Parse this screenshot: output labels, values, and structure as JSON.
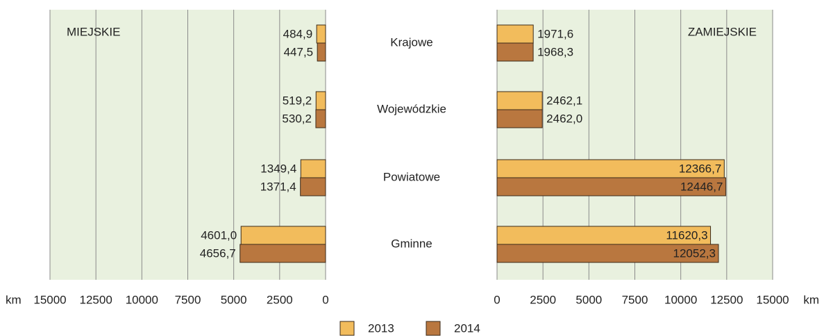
{
  "chart_data": [
    {
      "type": "bar",
      "title": "MIEJSKIE",
      "side": "left",
      "categories": [
        "Krajowe",
        "Wojewódzkie",
        "Powiatowe",
        "Gminne"
      ],
      "series": [
        {
          "name": "2013",
          "color": "#f2bc5c",
          "values": [
            484.9,
            519.2,
            1349.4,
            4601.0
          ],
          "value_labels": [
            "484,9",
            "519,2",
            "1349,4",
            "4601,0"
          ]
        },
        {
          "name": "2014",
          "color": "#b9773f",
          "values": [
            447.5,
            530.2,
            1371.4,
            4656.7
          ],
          "value_labels": [
            "447,5",
            "530,2",
            "1371,4",
            "4656,7"
          ]
        }
      ],
      "x_label": "km",
      "xlim": [
        0,
        15000
      ],
      "xticks": [
        0,
        2500,
        5000,
        7500,
        10000,
        12500,
        15000
      ],
      "grid": true
    },
    {
      "type": "bar",
      "title": "ZAMIEJSKIE",
      "side": "right",
      "series": [
        {
          "color": "#f2bc5c",
          "values": [
            1971.6,
            2462.1,
            12366.7,
            11620.3
          ],
          "value_labels": [
            "1971,6",
            "2462,1",
            "12366,7",
            "11620,3"
          ]
        },
        {
          "color": "#b9773f",
          "values": [
            1968.3,
            2462.0,
            12446.7,
            12052.3
          ],
          "value_labels": [
            "1968,3",
            "2462,0",
            "12446,7",
            "12052,3"
          ]
        }
      ],
      "x_label": "km",
      "xlim": [
        0,
        15000
      ],
      "xticks": [
        0,
        2500,
        5000,
        7500,
        10000,
        12500,
        15000
      ],
      "grid": true
    }
  ]
}
